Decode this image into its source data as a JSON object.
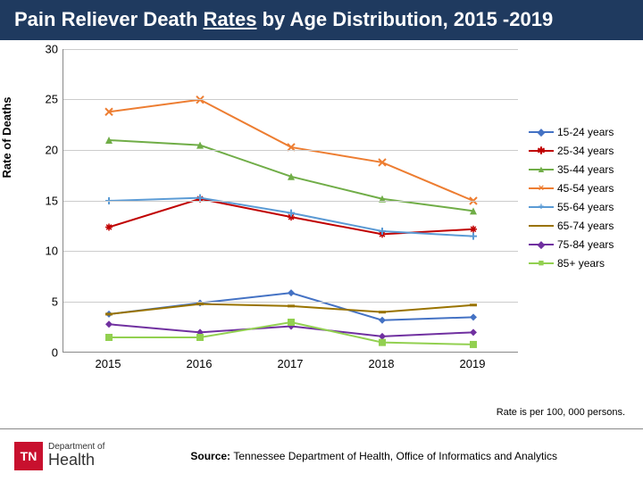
{
  "title": {
    "pre": "Pain Reliever Death ",
    "underlined": "Rates",
    "post": " by Age Distribution, 2015 -2019"
  },
  "chart": {
    "type": "line",
    "ylabel": "Rate of Deaths",
    "x_categories": [
      "2015",
      "2016",
      "2017",
      "2018",
      "2019"
    ],
    "ylim": [
      0,
      30
    ],
    "ytick_step": 5,
    "grid_color": "#cccccc",
    "axis_color": "#888888",
    "background": "#ffffff",
    "line_width": 2,
    "marker_size": 8,
    "series": [
      {
        "name": "15-24 years",
        "color": "#4472c4",
        "marker": "diamond",
        "values": [
          3.8,
          4.9,
          5.9,
          3.2,
          3.5
        ]
      },
      {
        "name": "25-34 years",
        "color": "#c00000",
        "marker": "asterisk",
        "values": [
          12.4,
          15.2,
          13.4,
          11.7,
          12.2
        ]
      },
      {
        "name": "35-44 years",
        "color": "#70ad47",
        "marker": "triangle",
        "values": [
          21.0,
          20.5,
          17.4,
          15.2,
          14.0
        ]
      },
      {
        "name": "45-54 years",
        "color": "#ed7d31",
        "marker": "x",
        "values": [
          23.8,
          25.0,
          20.3,
          18.8,
          15.0
        ]
      },
      {
        "name": "55-64 years",
        "color": "#5b9bd5",
        "marker": "cross",
        "values": [
          15.0,
          15.3,
          13.8,
          12.0,
          11.5
        ]
      },
      {
        "name": "65-74 years",
        "color": "#997300",
        "marker": "dash",
        "values": [
          3.8,
          4.8,
          4.6,
          4.0,
          4.7
        ]
      },
      {
        "name": "75-84 years",
        "color": "#7030a0",
        "marker": "diamond",
        "values": [
          2.8,
          2.0,
          2.6,
          1.6,
          2.0
        ]
      },
      {
        "name": "85+ years",
        "color": "#92d050",
        "marker": "square",
        "values": [
          1.5,
          1.5,
          3.0,
          1.0,
          0.8
        ]
      }
    ]
  },
  "footnote": "Rate is per 100, 000 persons.",
  "source": {
    "label": "Source: ",
    "text": "Tennessee Department of Health, Office of Informatics and Analytics"
  },
  "logo": {
    "abbrev": "TN",
    "line1": "Department of",
    "line2": "Health"
  }
}
